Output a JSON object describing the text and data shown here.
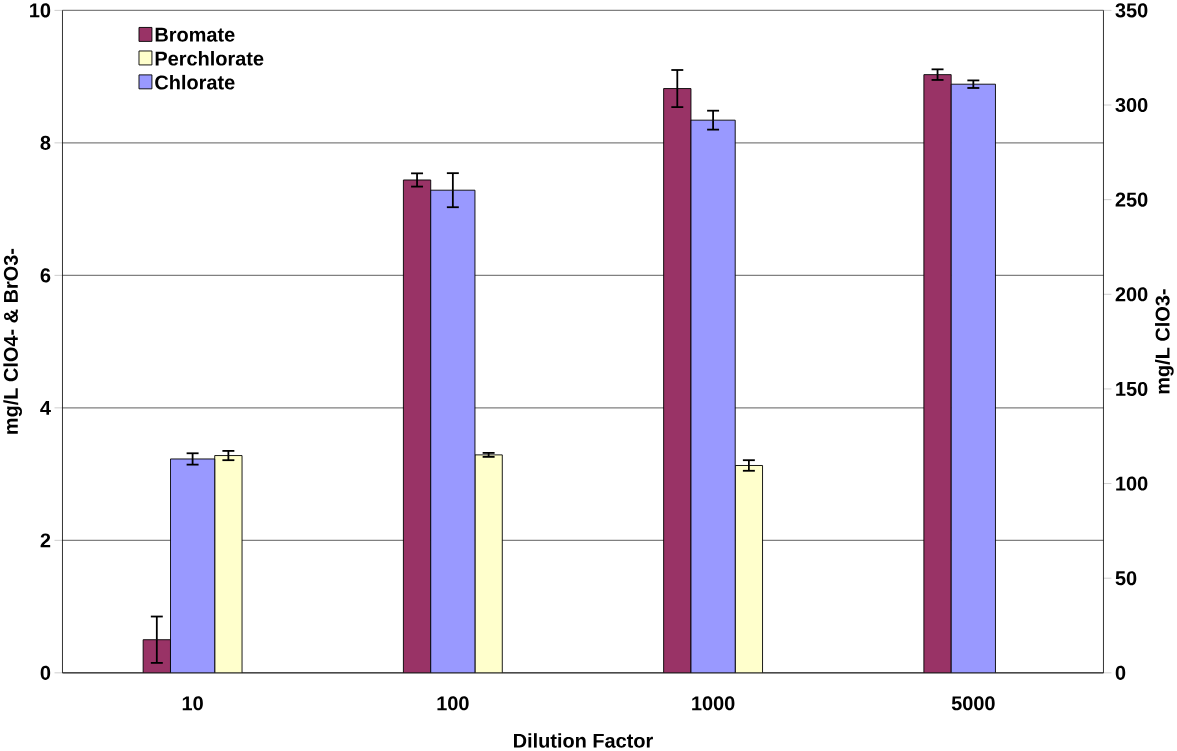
{
  "chart_data": {
    "type": "bar",
    "xlabel": "Dilution Factor",
    "ylabel": "mg/L ClO4- & BrO3-",
    "y2label": "mg/L ClO3-",
    "categories": [
      "10",
      "100",
      "1000",
      "5000"
    ],
    "series": [
      {
        "name": "Bromate",
        "color": "#993366",
        "values": [
          0.5,
          7.44,
          8.82,
          9.03
        ],
        "errors": [
          0.35,
          0.1,
          0.28,
          0.08
        ]
      },
      {
        "name": "Chlorate",
        "color": "#9999ff",
        "axis": "y2",
        "values": [
          113,
          255,
          292,
          311
        ],
        "errors": [
          3,
          9,
          5,
          2
        ]
      },
      {
        "name": "Perchlorate",
        "color": "#ffffcc",
        "values": [
          3.28,
          3.29,
          3.13,
          null
        ],
        "errors": [
          0.07,
          0.03,
          0.08,
          null
        ]
      }
    ],
    "ylim": [
      0,
      10
    ],
    "yticks": [
      0,
      2,
      4,
      6,
      8,
      10
    ],
    "y2lim": [
      0,
      350
    ],
    "y2ticks": [
      0,
      50,
      100,
      150,
      200,
      250,
      300,
      350
    ],
    "grid": "y",
    "legend": "top left"
  }
}
